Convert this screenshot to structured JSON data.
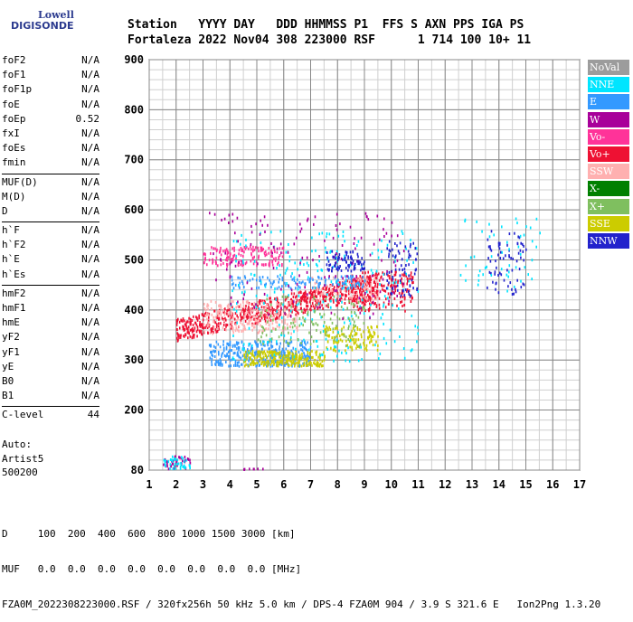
{
  "logo": {
    "line1": "Lowell",
    "line2": "DIGISONDE"
  },
  "header": {
    "line1": "Station   YYYY DAY   DDD HHMMSS P1  FFS S AXN PPS IGA PS",
    "line2": "Fortaleza 2022 Nov04 308 223000 RSF      1 714 100 10+ 11"
  },
  "params": [
    {
      "group": [
        {
          "name": "foF2",
          "value": "N/A"
        },
        {
          "name": "foF1",
          "value": "N/A"
        },
        {
          "name": "foF1p",
          "value": "N/A"
        },
        {
          "name": "foE",
          "value": "N/A"
        },
        {
          "name": "foEp",
          "value": "0.52"
        },
        {
          "name": "fxI",
          "value": "N/A"
        },
        {
          "name": "foEs",
          "value": "N/A"
        },
        {
          "name": "fmin",
          "value": "N/A"
        }
      ]
    },
    {
      "group": [
        {
          "name": "MUF(D)",
          "value": "N/A"
        },
        {
          "name": "M(D)",
          "value": "N/A"
        },
        {
          "name": "D",
          "value": "N/A"
        }
      ]
    },
    {
      "group": [
        {
          "name": "h`F",
          "value": "N/A"
        },
        {
          "name": "h`F2",
          "value": "N/A"
        },
        {
          "name": "h`E",
          "value": "N/A"
        },
        {
          "name": "h`Es",
          "value": "N/A"
        }
      ]
    },
    {
      "group": [
        {
          "name": "hmF2",
          "value": "N/A"
        },
        {
          "name": "hmF1",
          "value": "N/A"
        },
        {
          "name": "hmE",
          "value": "N/A"
        },
        {
          "name": "yF2",
          "value": "N/A"
        },
        {
          "name": "yF1",
          "value": "N/A"
        },
        {
          "name": "yE",
          "value": "N/A"
        },
        {
          "name": "B0",
          "value": "N/A"
        },
        {
          "name": "B1",
          "value": "N/A"
        }
      ]
    },
    {
      "group": [
        {
          "name": "C-level",
          "value": "44"
        }
      ]
    }
  ],
  "auto": {
    "line1": "Auto:",
    "line2": "Artist5",
    "line3": "500200"
  },
  "bottom": {
    "line1": "D     100  200  400  600  800 1000 1500 3000 [km]",
    "line2": "MUF   0.0  0.0  0.0  0.0  0.0  0.0  0.0  0.0 [MHz]",
    "line3": "FZA0M_2022308223000.RSF / 320fx256h 50 kHz 5.0 km / DPS-4 FZA0M 904 / 3.9 S 321.6 E   Ion2Png 1.3.20"
  },
  "legend": [
    {
      "label": "NoVal",
      "color": "#9c9c9c"
    },
    {
      "label": "NNE",
      "color": "#00e5ff"
    },
    {
      "label": "E",
      "color": "#3399ff"
    },
    {
      "label": "W",
      "color": "#a8009a"
    },
    {
      "label": "Vo-",
      "color": "#ff3399"
    },
    {
      "label": "Vo+",
      "color": "#ee1133"
    },
    {
      "label": "SSW",
      "color": "#ffb0b0"
    },
    {
      "label": "X-",
      "color": "#008000"
    },
    {
      "label": "X+",
      "color": "#7fbf5f"
    },
    {
      "label": "SSE",
      "color": "#cccc00"
    },
    {
      "label": "NNW",
      "color": "#2222cc"
    }
  ],
  "chart_data": {
    "type": "scatter",
    "xlim": [
      1,
      17
    ],
    "ylim": [
      80,
      900
    ],
    "xticks": [
      1,
      2,
      3,
      4,
      5,
      6,
      7,
      8,
      9,
      10,
      11,
      12,
      13,
      14,
      15,
      16,
      17
    ],
    "yticks": [
      80,
      200,
      300,
      400,
      500,
      600,
      700,
      800,
      900
    ],
    "grid": true,
    "legend_position": "right",
    "clusters": [
      {
        "color_key": "Vo+",
        "f": [
          2.0,
          9.5
        ],
        "h": [
          330,
          400
        ],
        "n": 700
      },
      {
        "color_key": "Vo+",
        "f": [
          8.5,
          10.8
        ],
        "h": [
          400,
          480
        ],
        "n": 180
      },
      {
        "color_key": "Vo-",
        "f": [
          3.0,
          6.0
        ],
        "h": [
          490,
          530
        ],
        "n": 160
      },
      {
        "color_key": "SSW",
        "f": [
          3.0,
          6.5
        ],
        "h": [
          355,
          420
        ],
        "n": 220
      },
      {
        "color_key": "SSW",
        "f": [
          7.0,
          9.5
        ],
        "h": [
          420,
          470
        ],
        "n": 90
      },
      {
        "color_key": "E",
        "f": [
          3.2,
          7.0
        ],
        "h": [
          290,
          340
        ],
        "n": 320
      },
      {
        "color_key": "E",
        "f": [
          4.0,
          9.0
        ],
        "h": [
          445,
          470
        ],
        "n": 120
      },
      {
        "color_key": "SSE",
        "f": [
          4.5,
          7.5
        ],
        "h": [
          290,
          320
        ],
        "n": 260
      },
      {
        "color_key": "SSE",
        "f": [
          7.5,
          9.5
        ],
        "h": [
          320,
          370
        ],
        "n": 120
      },
      {
        "color_key": "NNE",
        "f": [
          4.0,
          11.0
        ],
        "h": [
          300,
          560
        ],
        "n": 260
      },
      {
        "color_key": "X+",
        "f": [
          5.0,
          9.0
        ],
        "h": [
          330,
          430
        ],
        "n": 120
      },
      {
        "color_key": "W",
        "f": [
          3.0,
          10.5
        ],
        "h": [
          380,
          600
        ],
        "n": 150
      },
      {
        "color_key": "NNW",
        "f": [
          7.5,
          9.0
        ],
        "h": [
          480,
          520
        ],
        "n": 80
      },
      {
        "color_key": "NNW",
        "f": [
          9.8,
          11.0
        ],
        "h": [
          430,
          540
        ],
        "n": 70
      },
      {
        "color_key": "NNW",
        "f": [
          13.5,
          15.0
        ],
        "h": [
          430,
          560
        ],
        "n": 70
      },
      {
        "color_key": "NNE",
        "f": [
          12.5,
          15.5
        ],
        "h": [
          440,
          590
        ],
        "n": 50
      },
      {
        "color_key": "W",
        "f": [
          1.5,
          2.5
        ],
        "h": [
          80,
          110
        ],
        "n": 40
      },
      {
        "color_key": "NNE",
        "f": [
          1.5,
          2.5
        ],
        "h": [
          85,
          110
        ],
        "n": 40
      },
      {
        "color_key": "W",
        "f": [
          4.0,
          5.5
        ],
        "h": [
          80,
          85
        ],
        "n": 30
      }
    ]
  }
}
